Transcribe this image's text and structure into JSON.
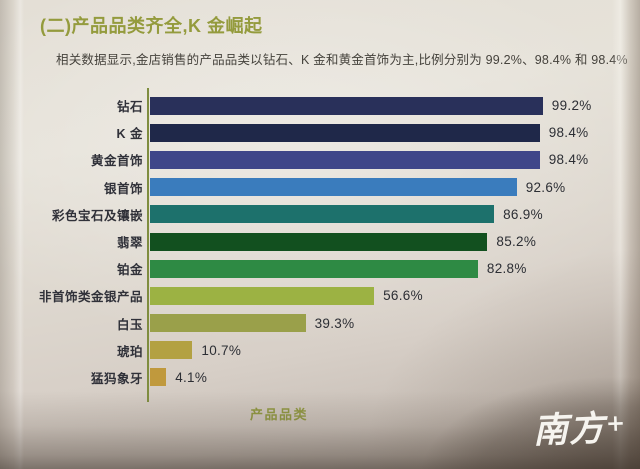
{
  "page": {
    "title": "(二)产品品类齐全,K 金崛起",
    "subtitle": "相关数据显示,金店销售的产品品类以钻石、K 金和黄金首饰为主,比例分别为 99.2%、98.4% 和 98.4%",
    "watermark_text": "南方",
    "watermark_plus": "+"
  },
  "chart_data": {
    "type": "bar",
    "orientation": "horizontal",
    "title": "",
    "xlabel": "产品品类",
    "ylabel": "",
    "xlim": [
      0,
      100
    ],
    "grid": "off",
    "legend": "none",
    "axis_color": "#7f8d3f",
    "categories": [
      "钻石",
      "K 金",
      "黄金首饰",
      "银首饰",
      "彩色宝石及镶嵌",
      "翡翠",
      "铂金",
      "非首饰类金银产品",
      "白玉",
      "琥珀",
      "猛犸象牙"
    ],
    "values": [
      99.2,
      98.4,
      98.4,
      92.6,
      86.9,
      85.2,
      82.8,
      56.6,
      39.3,
      10.7,
      4.1
    ],
    "value_labels": [
      "99.2%",
      "98.4%",
      "98.4%",
      "92.6%",
      "86.9%",
      "85.2%",
      "82.8%",
      "56.6%",
      "39.3%",
      "10.7%",
      "4.1%"
    ],
    "bar_colors": [
      "#29305a",
      "#1f2849",
      "#3f4689",
      "#3a7cbd",
      "#1d716c",
      "#12501f",
      "#2e8a44",
      "#9cb243",
      "#9aa04a",
      "#b3a142",
      "#c0993d"
    ]
  }
}
